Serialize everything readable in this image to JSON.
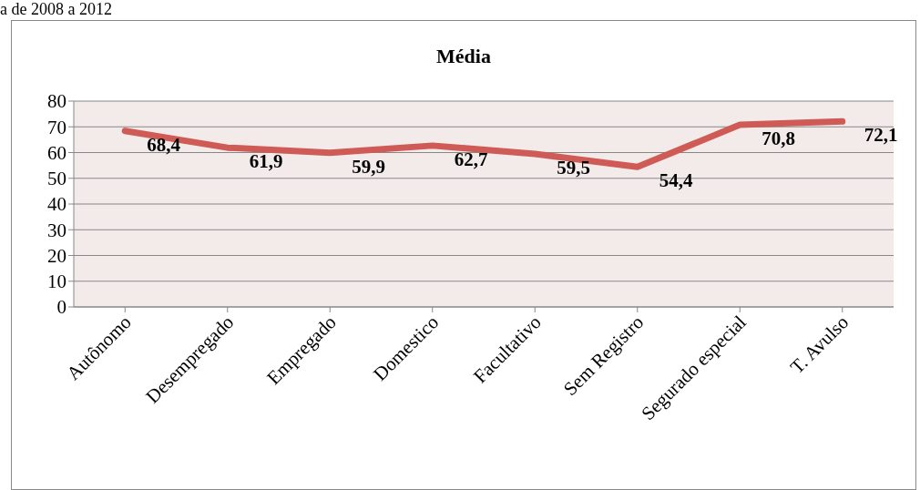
{
  "chart_data": {
    "type": "line",
    "title": "Média",
    "annotations": [
      "a de 2008 a 2012"
    ],
    "categories": [
      "Autônomo",
      "Desempregado",
      "Empregado",
      "Domestico",
      "Facultativo",
      "Sem Registro",
      "Segurado especial",
      "T. Avulso"
    ],
    "series": [
      {
        "color": "#cf5b56",
        "values": [
          68.4,
          61.9,
          59.9,
          62.7,
          59.5,
          54.4,
          70.8,
          72.1
        ],
        "value_labels": [
          "68,4",
          "61,9",
          "59,9",
          "62,7",
          "59,5",
          "54,4",
          "70,8",
          "72,1"
        ]
      }
    ],
    "ylim": [
      0,
      80
    ],
    "yticks": [
      0,
      10,
      20,
      30,
      40,
      50,
      60,
      70,
      80
    ],
    "grid": "y",
    "marker": "none",
    "line_style": "solid"
  }
}
